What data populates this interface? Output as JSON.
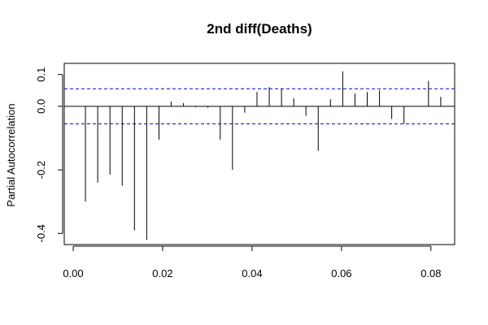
{
  "chart_data": {
    "type": "bar",
    "title": "2nd diff(Deaths)",
    "xlabel": "",
    "ylabel": "Partial Autocorrelation",
    "xlim": [
      -0.002,
      0.0853
    ],
    "ylim": [
      -0.435,
      0.135
    ],
    "x_ticks": [
      0.0,
      0.02,
      0.04,
      0.06,
      0.08
    ],
    "x_tick_labels": [
      "0.00",
      "0.02",
      "0.04",
      "0.06",
      "0.08"
    ],
    "y_ticks": [
      -0.4,
      -0.2,
      0.0,
      0.1
    ],
    "y_tick_labels": [
      "-0.4",
      "-0.2",
      "0.0",
      "0.1"
    ],
    "confidence_limit": 0.055,
    "lags": [
      0.00274,
      0.00548,
      0.00822,
      0.01096,
      0.0137,
      0.01644,
      0.01918,
      0.02192,
      0.02466,
      0.0274,
      0.03014,
      0.03288,
      0.03562,
      0.03836,
      0.0411,
      0.04384,
      0.04658,
      0.04932,
      0.05205,
      0.05479,
      0.05753,
      0.06027,
      0.06301,
      0.06575,
      0.06849,
      0.07123,
      0.07397,
      0.07671,
      0.07945,
      0.08219
    ],
    "values": [
      -0.3,
      -0.24,
      -0.215,
      -0.25,
      -0.39,
      -0.42,
      -0.105,
      0.015,
      0.01,
      -0.003,
      -0.005,
      -0.105,
      -0.2,
      -0.02,
      0.045,
      0.06,
      0.055,
      0.025,
      -0.03,
      -0.14,
      0.022,
      0.11,
      0.04,
      0.045,
      0.05,
      -0.04,
      -0.055,
      0.0,
      0.08,
      0.03
    ]
  }
}
